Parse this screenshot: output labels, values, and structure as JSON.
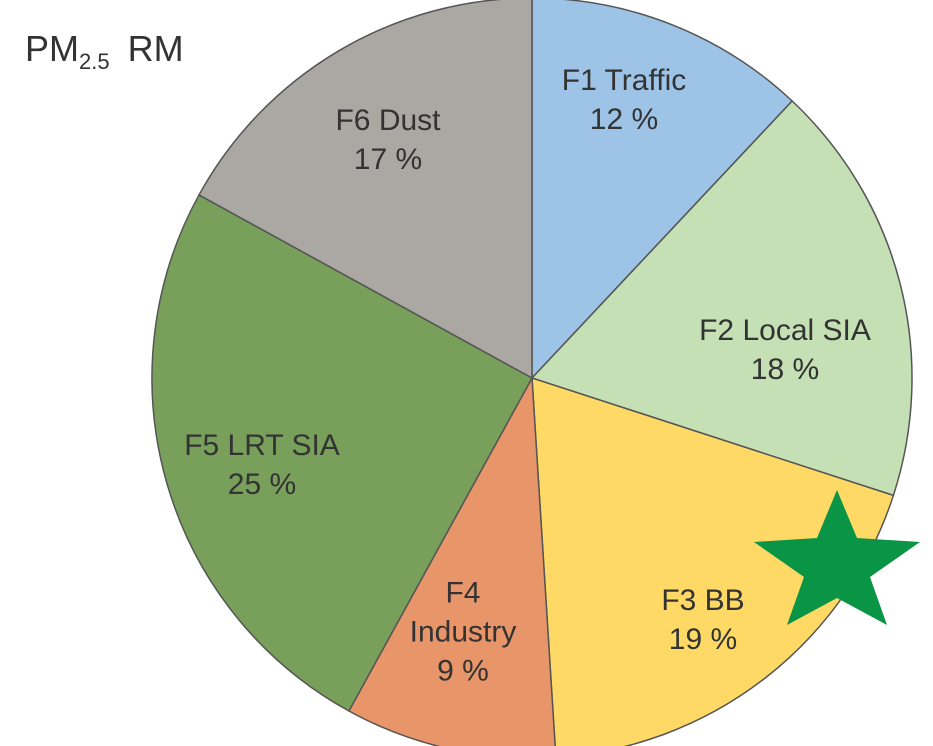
{
  "chart_data": {
    "type": "pie",
    "title_parts": [
      "PM",
      "2.5",
      "RM"
    ],
    "categories": [
      "F1 Traffic",
      "F2 Local SIA",
      "F3 BB",
      "F4 Industry",
      "F5 LRT SIA",
      "F6 Dust"
    ],
    "values": [
      12,
      18,
      19,
      9,
      25,
      17
    ],
    "value_labels": [
      "12 %",
      "18 %",
      "19 %",
      "9 %",
      "25 %",
      "17 %"
    ],
    "colors": [
      "#9dc3e6",
      "#c5e0b4",
      "#ffd966",
      "#e8956a",
      "#78a05a",
      "#aba7a3"
    ],
    "start_angle": 0,
    "direction": "clockwise"
  }
}
